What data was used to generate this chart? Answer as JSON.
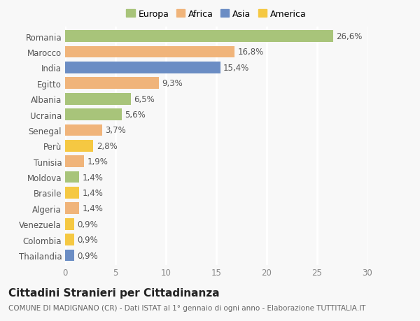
{
  "countries": [
    "Romania",
    "Marocco",
    "India",
    "Egitto",
    "Albania",
    "Ucraina",
    "Senegal",
    "Perù",
    "Tunisia",
    "Moldova",
    "Brasile",
    "Algeria",
    "Venezuela",
    "Colombia",
    "Thailandia"
  ],
  "values": [
    26.6,
    16.8,
    15.4,
    9.3,
    6.5,
    5.6,
    3.7,
    2.8,
    1.9,
    1.4,
    1.4,
    1.4,
    0.9,
    0.9,
    0.9
  ],
  "labels": [
    "26,6%",
    "16,8%",
    "15,4%",
    "9,3%",
    "6,5%",
    "5,6%",
    "3,7%",
    "2,8%",
    "1,9%",
    "1,4%",
    "1,4%",
    "1,4%",
    "0,9%",
    "0,9%",
    "0,9%"
  ],
  "colors": [
    "#a8c47a",
    "#f0b47a",
    "#6b8dc4",
    "#f0b47a",
    "#a8c47a",
    "#a8c47a",
    "#f0b47a",
    "#f5c842",
    "#f0b47a",
    "#a8c47a",
    "#f5c842",
    "#f0b47a",
    "#f5c842",
    "#f5c842",
    "#6b8dc4"
  ],
  "legend_labels": [
    "Europa",
    "Africa",
    "Asia",
    "America"
  ],
  "legend_colors": [
    "#a8c47a",
    "#f0b47a",
    "#6b8dc4",
    "#f5c842"
  ],
  "title": "Cittadini Stranieri per Cittadinanza",
  "subtitle": "COMUNE DI MADIGNANO (CR) - Dati ISTAT al 1° gennaio di ogni anno - Elaborazione TUTTITALIA.IT",
  "xlim": [
    0,
    30
  ],
  "xticks": [
    0,
    5,
    10,
    15,
    20,
    25,
    30
  ],
  "background_color": "#f8f8f8",
  "grid_color": "#ffffff",
  "bar_height": 0.75,
  "label_fontsize": 8.5,
  "tick_fontsize": 8.5,
  "legend_fontsize": 9,
  "title_fontsize": 11,
  "subtitle_fontsize": 7.5
}
